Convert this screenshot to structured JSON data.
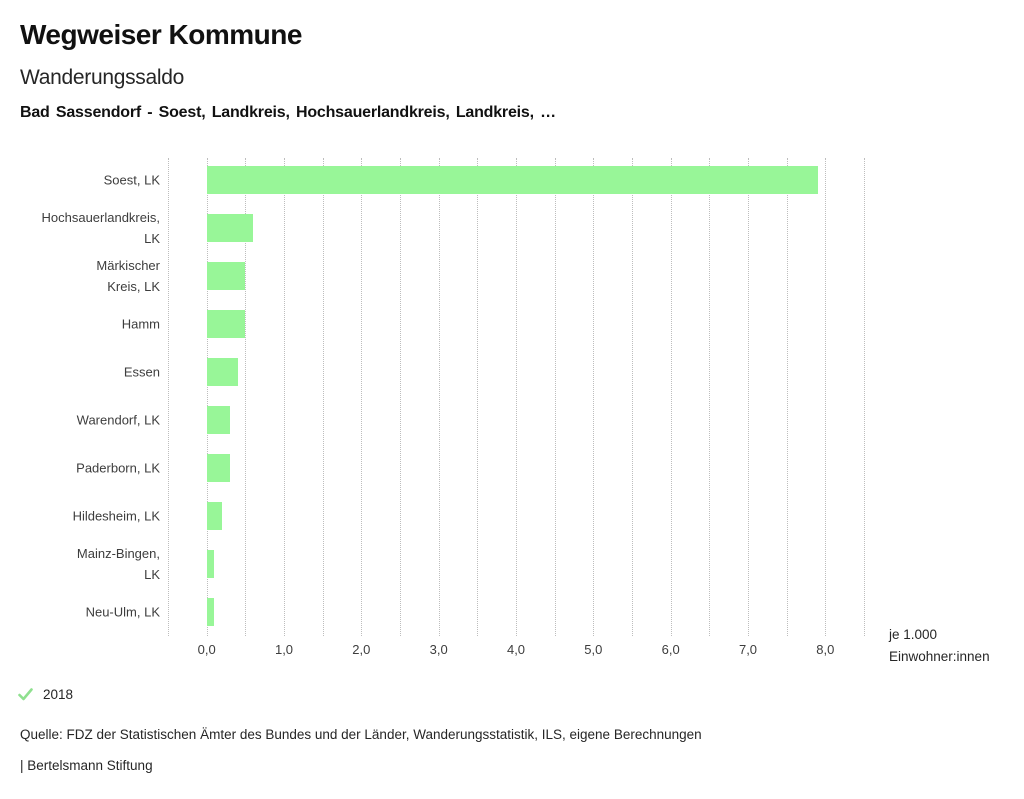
{
  "header": {
    "app_title": "Wegweiser Kommune",
    "chart_title": "Wanderungssaldo",
    "chart_subtitle": "Bad Sassendorf - Soest, Landkreis, Hochsauerlandkreis, Landkreis, …"
  },
  "chart_data": {
    "type": "bar",
    "orientation": "horizontal",
    "title": "Wanderungssaldo",
    "subtitle": "Bad Sassendorf - Soest, Landkreis, Hochsauerlandkreis, Landkreis, …",
    "categories": [
      "Soest, LK",
      "Hochsauerlandkreis,\nLK",
      "Märkischer\nKreis, LK",
      "Hamm",
      "Essen",
      "Warendorf, LK",
      "Paderborn, LK",
      "Hildesheim, LK",
      "Mainz-Bingen,\nLK",
      "Neu-Ulm, LK"
    ],
    "series": [
      {
        "name": "2018",
        "values": [
          7.9,
          0.6,
          0.5,
          0.5,
          0.4,
          0.3,
          0.3,
          0.2,
          0.1,
          0.1
        ]
      }
    ],
    "xlabel": "je 1.000\nEinwohner:innen",
    "ylabel": "",
    "xlim": [
      -0.5,
      8.5
    ],
    "gridline_step": 0.5,
    "grid": true,
    "x_tick_values": [
      0,
      1,
      2,
      3,
      4,
      5,
      6,
      7,
      8
    ],
    "x_tick_labels": [
      "0,0",
      "1,0",
      "2,0",
      "3,0",
      "4,0",
      "5,0",
      "6,0",
      "7,0",
      "8,0"
    ],
    "bar_color": "#98f698",
    "grid_color": "#bdbdbd",
    "legend_position": "bottom-left"
  },
  "legend": {
    "icon": "check-icon",
    "check_color": "#8fe08f",
    "label": "2018"
  },
  "footer": {
    "source": "Quelle: FDZ der Statistischen Ämter des Bundes und der Länder, Wanderungsstatistik, ILS, eigene Berechnungen",
    "attribution": "| Bertelsmann Stiftung"
  }
}
